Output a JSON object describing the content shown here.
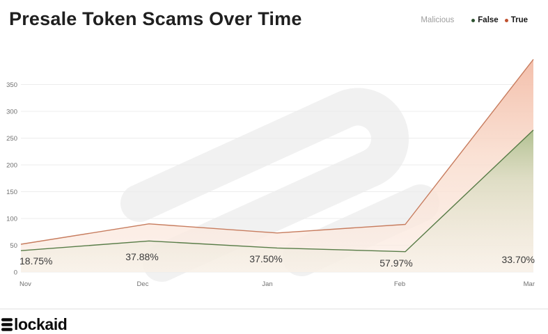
{
  "header": {
    "title": "Presale Token Scams Over Time",
    "legend": {
      "group_label": "Malicious",
      "items": [
        {
          "label": "False",
          "color": "#2d5230"
        },
        {
          "label": "True",
          "color": "#bf512f"
        }
      ]
    }
  },
  "chart_data": {
    "type": "area",
    "title": "Presale Token Scams Over Time",
    "legend_title": "Malicious",
    "legend_position": "top-right",
    "grid": "horizontal",
    "x": [
      "Nov",
      "Dec",
      "Jan",
      "Feb",
      "Mar"
    ],
    "series": [
      {
        "name": "False",
        "line_color": "#587c47",
        "fill_top": "#adbf8e",
        "fill_bottom": "#f1efe2",
        "values": [
          40,
          58,
          45,
          38,
          265
        ]
      },
      {
        "name": "True",
        "line_color": "#c77c5e",
        "fill_top": "#f3bca7",
        "fill_bottom": "#fcf1ea",
        "values": [
          52,
          90,
          73,
          89,
          397
        ]
      }
    ],
    "point_labels": [
      "18.75%",
      "37.88%",
      "37.50%",
      "57.97%",
      "33.70%"
    ],
    "y_ticks": [
      0,
      50,
      100,
      150,
      200,
      250,
      300,
      350
    ],
    "ylim": [
      0,
      400
    ],
    "colors": {
      "grid": "#ececec",
      "axis_text": "#707070",
      "label_text": "#3a3a3a",
      "watermark": "#f1f1f1"
    }
  },
  "footer": {
    "brand": "Blockaid"
  }
}
